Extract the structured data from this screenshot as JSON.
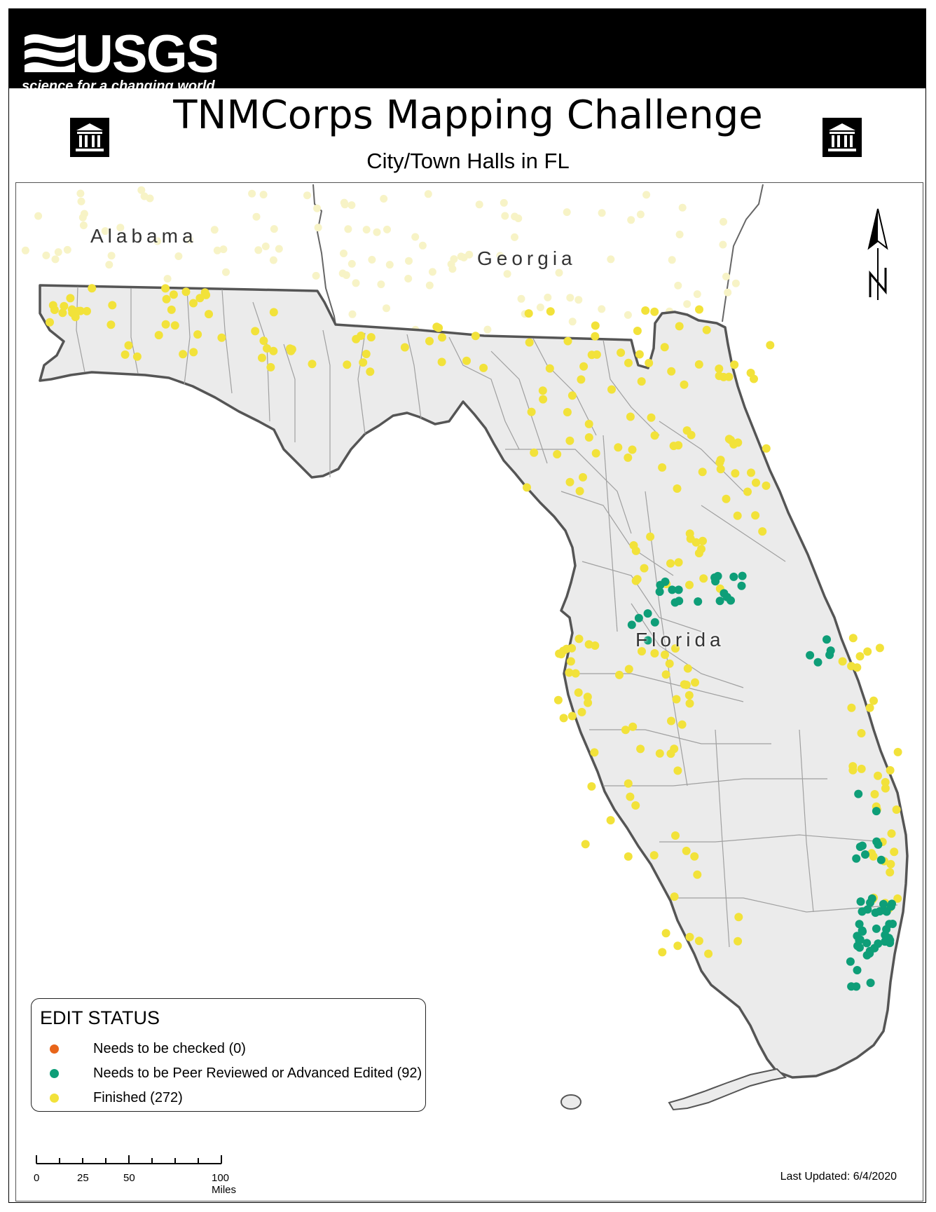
{
  "header": {
    "brand": "USGS",
    "tagline": "science for a changing world"
  },
  "title": "TNMCorps Mapping Challenge",
  "subtitle": "City/Town Halls in FL",
  "icons": {
    "left": "city-hall-icon",
    "right": "city-hall-icon",
    "north": "north-arrow-icon"
  },
  "map": {
    "state_labels": [
      "Alabama",
      "Georgia",
      "Florida"
    ]
  },
  "legend": {
    "title": "EDIT STATUS",
    "items": [
      {
        "label": "Needs to be checked (0)",
        "color": "#e8651a",
        "count": 0
      },
      {
        "label": "Needs to be Peer Reviewed or Advanced Edited (92)",
        "color": "#0e9e78",
        "count": 92
      },
      {
        "label": "Finished (272)",
        "color": "#f2e23a",
        "count": 272
      }
    ]
  },
  "scale": {
    "ticks": [
      "0",
      "25",
      "50",
      "100 Miles"
    ]
  },
  "last_updated": "Last Updated: 6/4/2020",
  "colors": {
    "land": "#ebebeb",
    "border": "#555555",
    "county_line": "#a0a0a0",
    "finished": "#f2e23a",
    "review": "#0e9e78",
    "check": "#e8651a",
    "neighbor_point": "#f7f3c6"
  }
}
